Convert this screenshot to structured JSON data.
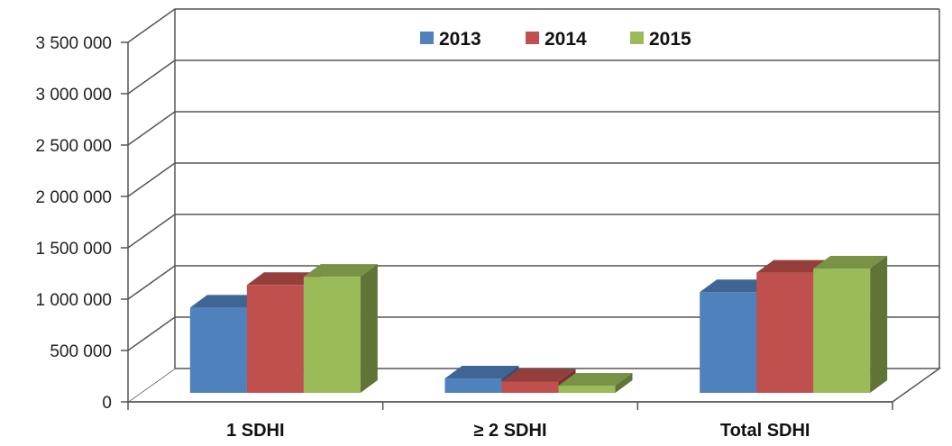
{
  "chart_data": {
    "type": "bar",
    "categories": [
      "1 SDHI",
      "≥ 2 SDHI",
      "Total SDHI"
    ],
    "series": [
      {
        "name": "2013",
        "color": "#4F81BD",
        "values": [
          830000,
          140000,
          980000
        ]
      },
      {
        "name": "2014",
        "color": "#C0504D",
        "values": [
          1050000,
          110000,
          1170000
        ]
      },
      {
        "name": "2015",
        "color": "#9BBB59",
        "values": [
          1130000,
          70000,
          1210000
        ]
      }
    ],
    "yticks": [
      "0",
      "500 000",
      "1 000 000",
      "1 500 000",
      "2 000 000",
      "2 500 000",
      "3 000 000",
      "3 500 000"
    ],
    "ylim": [
      0,
      3500000
    ],
    "ystep": 500000,
    "grid": true,
    "legend_position": "top",
    "style": "3d-clustered-column"
  }
}
